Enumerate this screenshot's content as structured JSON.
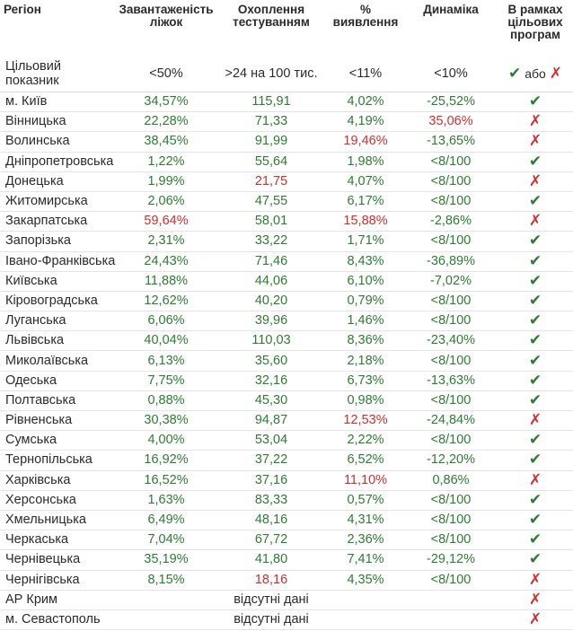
{
  "chart_data": {
    "type": "table",
    "columns": [
      "Регіон",
      "Завантаженість ліжок",
      "Охоплення тестуванням",
      "% виявлення",
      "Динаміка",
      "В рамках цільових програм"
    ],
    "target": {
      "label": "Цільовий показник",
      "values": [
        "<50%",
        ">24 на 100 тис.",
        "<11%",
        "<10%"
      ],
      "legend_or": "або"
    },
    "rows": [
      {
        "region": "м. Київ",
        "beds": "34,57%",
        "testing": "115,91",
        "detection": "4,02%",
        "dynamics": "-25,52%",
        "status": "check",
        "flags": [
          "good",
          "good",
          "good",
          "good"
        ]
      },
      {
        "region": "Вінницька",
        "beds": "22,28%",
        "testing": "71,33",
        "detection": "4,19%",
        "dynamics": "35,06%",
        "status": "cross",
        "flags": [
          "good",
          "good",
          "good",
          "bad"
        ]
      },
      {
        "region": "Волинська",
        "beds": "38,45%",
        "testing": "91,99",
        "detection": "19,46%",
        "dynamics": "-13,65%",
        "status": "cross",
        "flags": [
          "good",
          "good",
          "bad",
          "good"
        ]
      },
      {
        "region": "Дніпропетровська",
        "beds": "1,22%",
        "testing": "55,64",
        "detection": "1,98%",
        "dynamics": "<8/100",
        "status": "check",
        "flags": [
          "good",
          "good",
          "good",
          "good"
        ]
      },
      {
        "region": "Донецька",
        "beds": "1,99%",
        "testing": "21,75",
        "detection": "4,07%",
        "dynamics": "<8/100",
        "status": "cross",
        "flags": [
          "good",
          "bad",
          "good",
          "good"
        ]
      },
      {
        "region": "Житомирська",
        "beds": "2,06%",
        "testing": "47,55",
        "detection": "6,17%",
        "dynamics": "<8/100",
        "status": "check",
        "flags": [
          "good",
          "good",
          "good",
          "good"
        ]
      },
      {
        "region": "Закарпатська",
        "beds": "59,64%",
        "testing": "58,01",
        "detection": "15,88%",
        "dynamics": "-2,86%",
        "status": "cross",
        "flags": [
          "bad",
          "good",
          "bad",
          "good"
        ]
      },
      {
        "region": "Запорізька",
        "beds": "2,31%",
        "testing": "33,22",
        "detection": "1,71%",
        "dynamics": "<8/100",
        "status": "check",
        "flags": [
          "good",
          "good",
          "good",
          "good"
        ]
      },
      {
        "region": "Івано-Франківська",
        "beds": "24,43%",
        "testing": "71,46",
        "detection": "8,43%",
        "dynamics": "-36,89%",
        "status": "check",
        "flags": [
          "good",
          "good",
          "good",
          "good"
        ]
      },
      {
        "region": "Київська",
        "beds": "11,88%",
        "testing": "44,06",
        "detection": "6,10%",
        "dynamics": "-7,02%",
        "status": "check",
        "flags": [
          "good",
          "good",
          "good",
          "good"
        ]
      },
      {
        "region": "Кіровоградська",
        "beds": "12,62%",
        "testing": "40,20",
        "detection": "0,79%",
        "dynamics": "<8/100",
        "status": "check",
        "flags": [
          "good",
          "good",
          "good",
          "good"
        ]
      },
      {
        "region": "Луганська",
        "beds": "6,06%",
        "testing": "39,96",
        "detection": "1,46%",
        "dynamics": "<8/100",
        "status": "check",
        "flags": [
          "good",
          "good",
          "good",
          "good"
        ]
      },
      {
        "region": "Львівська",
        "beds": "40,04%",
        "testing": "110,03",
        "detection": "8,36%",
        "dynamics": "-23,40%",
        "status": "check",
        "flags": [
          "good",
          "good",
          "good",
          "good"
        ]
      },
      {
        "region": "Миколаївська",
        "beds": "6,13%",
        "testing": "35,60",
        "detection": "2,18%",
        "dynamics": "<8/100",
        "status": "check",
        "flags": [
          "good",
          "good",
          "good",
          "good"
        ]
      },
      {
        "region": "Одеська",
        "beds": "7,75%",
        "testing": "32,16",
        "detection": "6,73%",
        "dynamics": "-13,63%",
        "status": "check",
        "flags": [
          "good",
          "good",
          "good",
          "good"
        ]
      },
      {
        "region": "Полтавська",
        "beds": "0,88%",
        "testing": "45,30",
        "detection": "0,98%",
        "dynamics": "<8/100",
        "status": "check",
        "flags": [
          "good",
          "good",
          "good",
          "good"
        ]
      },
      {
        "region": "Рівненська",
        "beds": "30,38%",
        "testing": "94,87",
        "detection": "12,53%",
        "dynamics": "-24,84%",
        "status": "cross",
        "flags": [
          "good",
          "good",
          "bad",
          "good"
        ]
      },
      {
        "region": "Сумська",
        "beds": "4,00%",
        "testing": "53,04",
        "detection": "2,22%",
        "dynamics": "<8/100",
        "status": "check",
        "flags": [
          "good",
          "good",
          "good",
          "good"
        ]
      },
      {
        "region": "Тернопільська",
        "beds": "16,92%",
        "testing": "37,22",
        "detection": "6,52%",
        "dynamics": "-12,20%",
        "status": "check",
        "flags": [
          "good",
          "good",
          "good",
          "good"
        ]
      },
      {
        "region": "Харківська",
        "beds": "16,52%",
        "testing": "37,16",
        "detection": "11,10%",
        "dynamics": "0,86%",
        "status": "cross",
        "flags": [
          "good",
          "good",
          "bad",
          "good"
        ]
      },
      {
        "region": "Херсонська",
        "beds": "1,63%",
        "testing": "83,33",
        "detection": "0,57%",
        "dynamics": "<8/100",
        "status": "check",
        "flags": [
          "good",
          "good",
          "good",
          "good"
        ]
      },
      {
        "region": "Хмельницька",
        "beds": "6,49%",
        "testing": "48,16",
        "detection": "4,31%",
        "dynamics": "<8/100",
        "status": "check",
        "flags": [
          "good",
          "good",
          "good",
          "good"
        ]
      },
      {
        "region": "Черкаська",
        "beds": "7,04%",
        "testing": "67,72",
        "detection": "2,36%",
        "dynamics": "<8/100",
        "status": "check",
        "flags": [
          "good",
          "good",
          "good",
          "good"
        ]
      },
      {
        "region": "Чернівецька",
        "beds": "35,19%",
        "testing": "41,80",
        "detection": "7,41%",
        "dynamics": "-29,12%",
        "status": "check",
        "flags": [
          "good",
          "good",
          "good",
          "good"
        ]
      },
      {
        "region": "Чернігівська",
        "beds": "8,15%",
        "testing": "18,16",
        "detection": "4,35%",
        "dynamics": "<8/100",
        "status": "cross",
        "flags": [
          "good",
          "bad",
          "good",
          "good"
        ]
      }
    ],
    "no_data_rows": [
      {
        "region": "АР Крим",
        "text": "відсутні дані",
        "status": "cross"
      },
      {
        "region": "м. Севастополь",
        "text": "відсутні дані",
        "status": "cross"
      }
    ]
  },
  "colors": {
    "good": "#2e7d32",
    "bad": "#d32f2f",
    "text": "#2b2b2b"
  },
  "icons": {
    "check": "check-icon",
    "cross": "cross-icon"
  }
}
